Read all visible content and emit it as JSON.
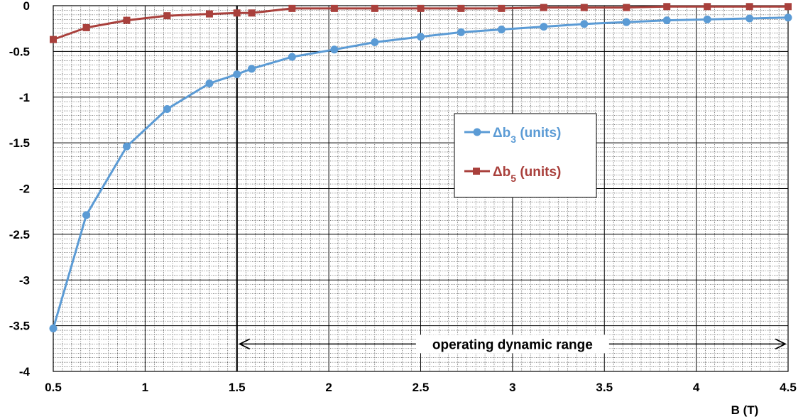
{
  "chart_data": {
    "type": "line",
    "xlabel": "B (T)",
    "ylabel": "",
    "xlim": [
      0.5,
      4.5
    ],
    "ylim": [
      -4,
      0
    ],
    "x_ticks": [
      0.5,
      1,
      1.5,
      2,
      2.5,
      3,
      3.5,
      4,
      4.5
    ],
    "x_tick_labels": [
      "0.5",
      "1",
      "1.5",
      "2",
      "2.5",
      "3",
      "3.5",
      "4",
      "4.5"
    ],
    "y_ticks": [
      0,
      -0.5,
      -1,
      -1.5,
      -2,
      -2.5,
      -3,
      -3.5,
      -4
    ],
    "y_tick_labels": [
      "0",
      "-0.5",
      "-1",
      "-1.5",
      "-2",
      "-2.5",
      "-3",
      "-3.5",
      "-4"
    ],
    "grid": "major and minor",
    "legend_position": "center-right",
    "series": [
      {
        "name": "Δb3 (units)",
        "legend_main": "Δb",
        "legend_sub": "3",
        "legend_rest": " (units)",
        "color": "#5b9bd5",
        "marker": "circle",
        "x": [
          0.5,
          0.68,
          0.9,
          1.12,
          1.35,
          1.5,
          1.58,
          1.8,
          2.03,
          2.25,
          2.5,
          2.72,
          2.94,
          3.17,
          3.39,
          3.62,
          3.84,
          4.06,
          4.29,
          4.5
        ],
        "values": [
          -3.53,
          -2.29,
          -1.54,
          -1.13,
          -0.85,
          -0.75,
          -0.69,
          -0.56,
          -0.48,
          -0.4,
          -0.34,
          -0.29,
          -0.26,
          -0.23,
          -0.2,
          -0.18,
          -0.16,
          -0.15,
          -0.14,
          -0.13
        ]
      },
      {
        "name": "Δb5 (units)",
        "legend_main": "Δb",
        "legend_sub": "5",
        "legend_rest": " (units)",
        "color": "#a9403c",
        "marker": "square",
        "x": [
          0.5,
          0.68,
          0.9,
          1.12,
          1.35,
          1.5,
          1.58,
          1.8,
          2.03,
          2.25,
          2.5,
          2.72,
          2.94,
          3.17,
          3.39,
          3.62,
          3.84,
          4.06,
          4.29,
          4.5
        ],
        "values": [
          -0.37,
          -0.24,
          -0.16,
          -0.11,
          -0.09,
          -0.08,
          -0.08,
          -0.03,
          -0.03,
          -0.03,
          -0.03,
          -0.03,
          -0.03,
          -0.02,
          -0.02,
          -0.02,
          -0.01,
          -0.01,
          -0.01,
          -0.01
        ]
      }
    ],
    "annotations": [
      {
        "text": "operating dynamic range",
        "x_start": 1.5,
        "x_end": 4.5,
        "y": -3.7,
        "style": "double-arrow"
      }
    ],
    "reference_lines": [
      {
        "axis": "x",
        "value": 1.5
      }
    ]
  }
}
